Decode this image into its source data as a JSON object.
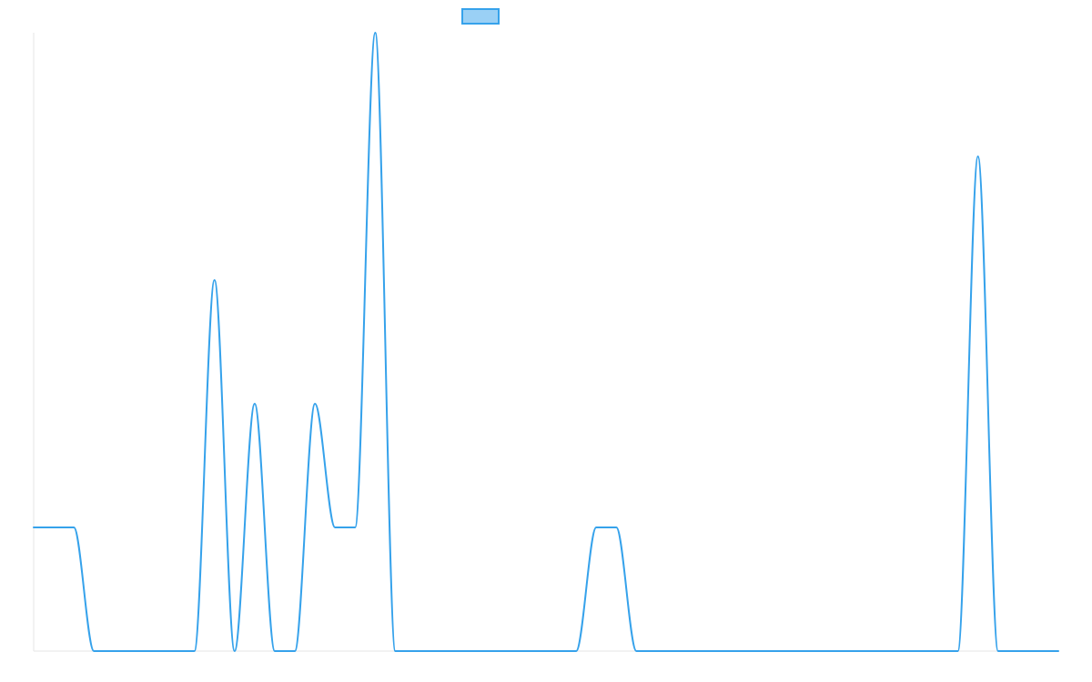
{
  "chart_data": {
    "type": "line",
    "title": "",
    "xlabel": "",
    "ylabel": "",
    "legend": {
      "position": "top",
      "label": "",
      "color": "#36a2eb",
      "fill": "#9ad0f5"
    },
    "grid": false,
    "x": [
      0,
      1,
      2,
      3,
      4,
      5,
      6,
      7,
      8,
      9,
      10,
      11,
      12,
      13,
      14,
      15,
      16,
      17,
      18,
      19,
      20,
      21,
      22,
      23,
      24,
      25,
      26,
      27,
      28,
      29,
      30,
      31,
      32,
      33,
      34,
      35,
      36,
      37,
      38,
      39,
      40,
      41,
      42,
      43,
      44,
      45,
      46,
      47,
      48,
      49,
      50,
      51
    ],
    "ylim": [
      0,
      100
    ],
    "series": [
      {
        "name": "",
        "color": "#36a2eb",
        "values": [
          20,
          20,
          20,
          0,
          0,
          0,
          0,
          0,
          0,
          60,
          0,
          40,
          0,
          0,
          40,
          20,
          20,
          100,
          0,
          0,
          0,
          0,
          0,
          0,
          0,
          0,
          0,
          0,
          20,
          20,
          0,
          0,
          0,
          0,
          0,
          0,
          0,
          0,
          0,
          0,
          0,
          0,
          0,
          0,
          0,
          0,
          0,
          80,
          0,
          0,
          0,
          0
        ]
      }
    ]
  }
}
